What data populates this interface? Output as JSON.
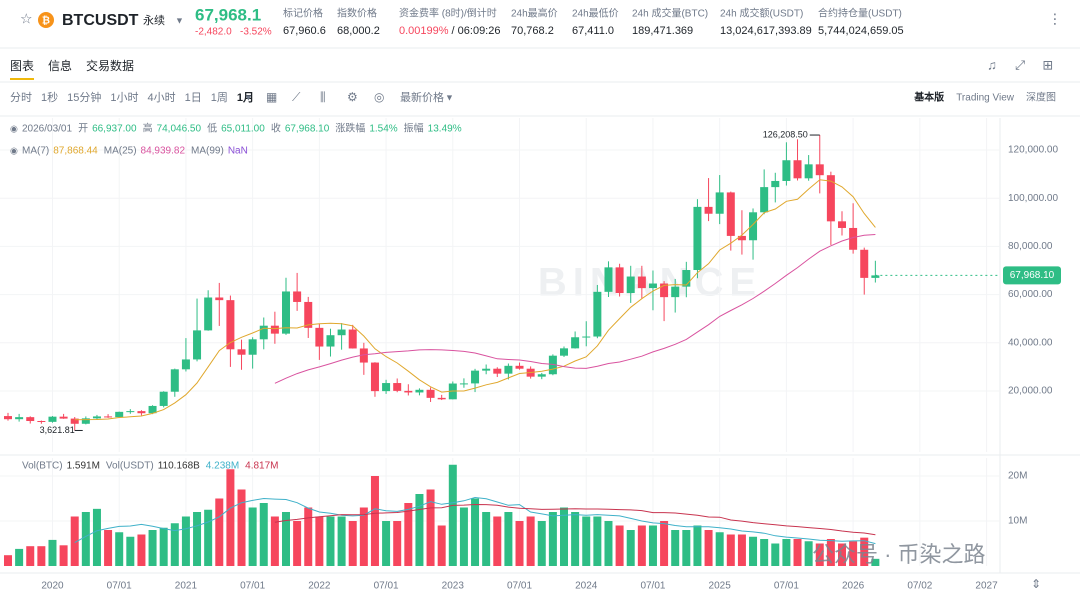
{
  "header": {
    "symbol": "BTCUSDT",
    "contract": "永续",
    "price": "67,968.1",
    "change": "-2,482.0",
    "change_pct": "-3.52%",
    "stats": [
      {
        "label": "标记价格",
        "value": "67,960.6"
      },
      {
        "label": "指数价格",
        "value": "68,000.2"
      },
      {
        "label": "资金费率 (8时)/倒计时",
        "value": "0.00199%",
        "extra": "/ 06:09:26"
      },
      {
        "label": "24h最高价",
        "value": "70,768.2"
      },
      {
        "label": "24h最低价",
        "value": "67,411.0"
      },
      {
        "label": "24h 成交量(BTC)",
        "value": "189,471.369"
      },
      {
        "label": "24h 成交额(USDT)",
        "value": "13,024,617,393.89"
      },
      {
        "label": "合约持仓量(USDT)",
        "value": "5,744,024,659.05"
      }
    ]
  },
  "tabs": [
    "图表",
    "信息",
    "交易数据"
  ],
  "intervals": [
    "分时",
    "1秒",
    "15分钟",
    "1小时",
    "4小时",
    "1日",
    "1周",
    "1月"
  ],
  "price_type": "最新价格",
  "views": [
    "基本版",
    "Trading View",
    "深度图"
  ],
  "ohlc_info": {
    "date": "2026/03/01",
    "items": [
      {
        "label": "开",
        "value": "66,937.00"
      },
      {
        "label": "高",
        "value": "74,046.50"
      },
      {
        "label": "低",
        "value": "65,011.00"
      },
      {
        "label": "收",
        "value": "67,968.10"
      },
      {
        "label": "涨跌幅",
        "value": "1.54%"
      },
      {
        "label": "振幅",
        "value": "13.49%"
      }
    ]
  },
  "ma_legend": [
    {
      "label": "MA(7)",
      "value": "87,868.44",
      "color": "#e0a82e"
    },
    {
      "label": "MA(25)",
      "value": "84,939.82",
      "color": "#d9539f"
    },
    {
      "label": "MA(99)",
      "value": "NaN",
      "color": "#8a4fd6"
    }
  ],
  "vol_legend": [
    {
      "label": "Vol(BTC)",
      "value": "1.591M",
      "color": "#333333"
    },
    {
      "label": "Vol(USDT)",
      "value": "110.168B",
      "color": "#333333"
    },
    {
      "label": "",
      "value": "4.238M",
      "color": "#3fb1c9"
    },
    {
      "label": "",
      "value": "4.817M",
      "color": "#c8344f"
    }
  ],
  "watermark": "BINANCE",
  "overlay": "公众号 · 币染之路",
  "chart_data": {
    "type": "candlestick",
    "up_color": "#2ebd85",
    "down_color": "#f6465d",
    "categories": [
      null,
      null,
      null,
      null,
      "2020",
      null,
      null,
      null,
      null,
      null,
      "07/01",
      null,
      null,
      null,
      null,
      null,
      "2021",
      null,
      null,
      null,
      null,
      null,
      "07/01",
      null,
      null,
      null,
      null,
      null,
      "2022",
      null,
      null,
      null,
      null,
      null,
      "07/01",
      null,
      null,
      null,
      null,
      null,
      "2023",
      null,
      null,
      null,
      null,
      null,
      "07/01",
      null,
      null,
      null,
      null,
      null,
      "2024",
      null,
      null,
      null,
      null,
      null,
      "07/01",
      null,
      null,
      null,
      null,
      null,
      "2025",
      null,
      null,
      null,
      null,
      null,
      "07/01",
      null,
      null,
      null,
      null,
      null,
      "2026",
      null,
      null,
      null,
      null,
      null,
      "07/02",
      null,
      null,
      null,
      null,
      null,
      "2027"
    ],
    "open": [
      9600,
      8300,
      9150,
      7550,
      7200,
      9350,
      8550,
      6400,
      8650,
      9450,
      9150,
      11350,
      11650,
      10780,
      13800,
      19700,
      29000,
      33100,
      45150,
      58800,
      57700,
      37300,
      35050,
      41450,
      47100,
      43800,
      61300,
      56950,
      46200,
      38450,
      43150,
      45500,
      37650,
      31800,
      19950,
      23300,
      20050,
      19400,
      20500,
      17150,
      16550,
      23100,
      23150,
      28450,
      29250,
      27200,
      30450,
      29250,
      25950,
      26950,
      34650,
      37700,
      42300,
      42600,
      61150,
      71300,
      60650,
      67500,
      62700,
      64600,
      58950,
      63300,
      70200,
      96400,
      93550,
      102400,
      84350,
      82550,
      94150,
      104600,
      107150,
      115750,
      108250,
      114050,
      109550,
      90400,
      87650,
      78600,
      66937,
      null,
      null,
      null,
      null,
      null,
      null,
      null,
      null,
      null,
      null
    ],
    "high": [
      10900,
      10500,
      9500,
      7750,
      9600,
      10500,
      9200,
      9450,
      10070,
      10400,
      11450,
      12480,
      12050,
      14100,
      19900,
      29300,
      41950,
      58350,
      61800,
      64850,
      59600,
      41300,
      42300,
      50500,
      52900,
      67000,
      69000,
      59050,
      48000,
      45850,
      48200,
      47450,
      40000,
      31950,
      24650,
      25200,
      22800,
      21100,
      21450,
      18400,
      23950,
      25250,
      29200,
      31000,
      29850,
      31400,
      31800,
      30200,
      27500,
      35200,
      38450,
      44700,
      48950,
      64000,
      73800,
      72800,
      71950,
      71950,
      70000,
      65600,
      66500,
      73600,
      99600,
      108350,
      109600,
      102750,
      95000,
      95750,
      111950,
      110550,
      123200,
      124450,
      117900,
      126208.5,
      111000,
      94600,
      97900,
      79500,
      74046.5,
      null,
      null,
      null,
      null,
      null,
      null,
      null,
      null,
      null,
      null
    ],
    "low": [
      7700,
      7300,
      6500,
      6400,
      6850,
      8450,
      3621.81,
      6150,
      8100,
      8850,
      8950,
      10550,
      9850,
      10400,
      13200,
      17600,
      28100,
      32300,
      45000,
      47000,
      30000,
      28800,
      29300,
      37300,
      39600,
      43300,
      53250,
      42000,
      32900,
      34300,
      37150,
      37600,
      26700,
      17600,
      18800,
      19500,
      18150,
      18200,
      15450,
      16250,
      16500,
      21350,
      19550,
      26950,
      25800,
      24800,
      28850,
      25150,
      24900,
      26550,
      34100,
      37600,
      38550,
      41900,
      59000,
      59200,
      56550,
      58400,
      53500,
      49000,
      52550,
      58900,
      66800,
      90500,
      89250,
      78250,
      76600,
      74500,
      93350,
      98250,
      105250,
      107350,
      107250,
      102000,
      80600,
      84500,
      77000,
      60000,
      65011,
      null,
      null,
      null,
      null,
      null,
      null,
      null,
      null,
      null,
      null
    ],
    "close": [
      8300,
      9150,
      7550,
      7200,
      9350,
      8550,
      6400,
      8650,
      9450,
      9150,
      11350,
      11650,
      10780,
      13800,
      19700,
      29000,
      33100,
      45150,
      58800,
      57700,
      37300,
      35050,
      41450,
      47100,
      43800,
      61300,
      56950,
      46200,
      38450,
      43150,
      45500,
      37650,
      31800,
      19950,
      23300,
      20050,
      19400,
      20500,
      17150,
      16550,
      23100,
      23150,
      28450,
      29250,
      27200,
      30450,
      29250,
      25950,
      26950,
      34650,
      37700,
      42300,
      42600,
      61150,
      71300,
      60650,
      67500,
      62700,
      64600,
      58950,
      63300,
      70200,
      96400,
      93550,
      102400,
      84350,
      82550,
      94150,
      104600,
      107150,
      115750,
      108250,
      114050,
      109550,
      90400,
      87650,
      78600,
      66937,
      67968.1,
      null,
      null,
      null,
      null,
      null,
      null,
      null,
      null,
      null,
      null
    ],
    "volume": [
      2400000,
      3800000,
      4400000,
      4400000,
      5800000,
      4600000,
      11000000,
      12000000,
      12700000,
      8000000,
      7500000,
      6500000,
      7000000,
      8000000,
      8500000,
      9500000,
      11000000,
      12000000,
      12500000,
      15000000,
      21500000,
      17000000,
      13000000,
      14000000,
      11000000,
      12000000,
      10000000,
      13000000,
      11000000,
      11000000,
      11000000,
      10000000,
      13000000,
      20000000,
      10000000,
      10000000,
      14000000,
      16000000,
      17000000,
      9000000,
      22500000,
      13000000,
      15000000,
      12000000,
      11000000,
      12000000,
      10000000,
      11000000,
      10000000,
      12000000,
      13000000,
      12000000,
      11000000,
      11000000,
      10000000,
      9000000,
      8000000,
      9000000,
      9000000,
      10000000,
      8000000,
      8000000,
      9000000,
      8000000,
      7500000,
      7000000,
      7000000,
      6500000,
      6000000,
      5000000,
      6000000,
      6000000,
      5500000,
      5000000,
      6000000,
      5000000,
      5500000,
      6300000,
      1591000,
      null,
      null,
      null,
      null,
      null,
      null,
      null,
      null,
      null,
      null
    ],
    "max_label": "126,208.50",
    "min_label": "3,621.81",
    "last_label": "67,968.10",
    "ylim": [
      -5311,
      133278
    ],
    "yticks": [
      {
        "value": 20000,
        "label": "20,000.00"
      },
      {
        "value": 40000,
        "label": "40,000.00"
      },
      {
        "value": 60000,
        "label": "60,000.00"
      },
      {
        "value": 80000,
        "label": "80,000.00"
      },
      {
        "value": 100000,
        "label": "100,000.00"
      },
      {
        "value": 120000,
        "label": "120,000.00"
      }
    ],
    "vol_ylim": [
      0,
      24000000
    ],
    "vol_yticks": [
      {
        "value": 10000000,
        "label": "10M"
      },
      {
        "value": 20000000,
        "label": "20M"
      }
    ],
    "ma_periods": [
      7,
      25
    ],
    "grid": true
  }
}
